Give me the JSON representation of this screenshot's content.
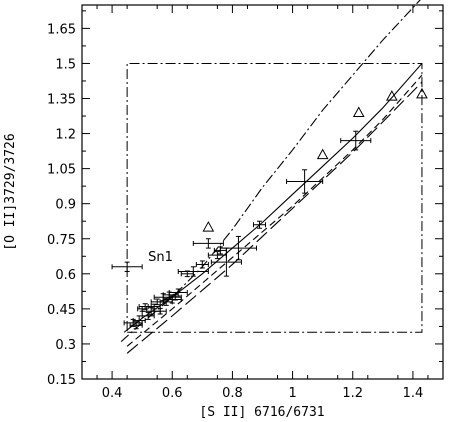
{
  "chart_data": {
    "type": "scatter",
    "title": "",
    "xlabel": "[S II] 6716/6731",
    "ylabel": "[O II]3729/3726",
    "xlim": [
      0.3,
      1.5
    ],
    "ylim": [
      0.15,
      1.75
    ],
    "xticks": [
      "0.4",
      "0.6",
      "0.8",
      "1",
      "1.2",
      "1.4"
    ],
    "yticks": [
      "0.15",
      "0.3",
      "0.45",
      "0.6",
      "0.75",
      "0.9",
      "1.05",
      "1.2",
      "1.35",
      "1.5",
      "1.65"
    ],
    "grid": false,
    "legend": "none",
    "box": {
      "x": [
        0.45,
        1.43
      ],
      "y": [
        0.35,
        1.5
      ]
    },
    "annotations": [
      {
        "text": "Sn1",
        "x": 0.52,
        "y": 0.655
      }
    ],
    "crosses": [
      {
        "x": 0.45,
        "y": 0.63,
        "xerr": 0.05,
        "yerr": 0.02
      },
      {
        "x": 0.47,
        "y": 0.39,
        "xerr": 0.03,
        "yerr": 0.015
      },
      {
        "x": 0.48,
        "y": 0.38,
        "xerr": 0.02,
        "yerr": 0.015
      },
      {
        "x": 0.49,
        "y": 0.4,
        "xerr": 0.02,
        "yerr": 0.02
      },
      {
        "x": 0.5,
        "y": 0.45,
        "xerr": 0.015,
        "yerr": 0.01
      },
      {
        "x": 0.51,
        "y": 0.46,
        "xerr": 0.02,
        "yerr": 0.012
      },
      {
        "x": 0.52,
        "y": 0.42,
        "xerr": 0.02,
        "yerr": 0.015
      },
      {
        "x": 0.53,
        "y": 0.44,
        "xerr": 0.03,
        "yerr": 0.015
      },
      {
        "x": 0.54,
        "y": 0.46,
        "xerr": 0.02,
        "yerr": 0.01
      },
      {
        "x": 0.55,
        "y": 0.48,
        "xerr": 0.02,
        "yerr": 0.012
      },
      {
        "x": 0.56,
        "y": 0.44,
        "xerr": 0.02,
        "yerr": 0.012
      },
      {
        "x": 0.57,
        "y": 0.5,
        "xerr": 0.03,
        "yerr": 0.015
      },
      {
        "x": 0.58,
        "y": 0.48,
        "xerr": 0.02,
        "yerr": 0.015
      },
      {
        "x": 0.59,
        "y": 0.51,
        "xerr": 0.02,
        "yerr": 0.012
      },
      {
        "x": 0.6,
        "y": 0.49,
        "xerr": 0.03,
        "yerr": 0.015
      },
      {
        "x": 0.61,
        "y": 0.5,
        "xerr": 0.02,
        "yerr": 0.012
      },
      {
        "x": 0.62,
        "y": 0.52,
        "xerr": 0.03,
        "yerr": 0.015
      },
      {
        "x": 0.65,
        "y": 0.6,
        "xerr": 0.02,
        "yerr": 0.012
      },
      {
        "x": 0.67,
        "y": 0.61,
        "xerr": 0.05,
        "yerr": 0.02
      },
      {
        "x": 0.7,
        "y": 0.64,
        "xerr": 0.02,
        "yerr": 0.015
      },
      {
        "x": 0.72,
        "y": 0.73,
        "xerr": 0.05,
        "yerr": 0.02
      },
      {
        "x": 0.75,
        "y": 0.68,
        "xerr": 0.03,
        "yerr": 0.015
      },
      {
        "x": 0.76,
        "y": 0.7,
        "xerr": 0.02,
        "yerr": 0.015
      },
      {
        "x": 0.78,
        "y": 0.65,
        "xerr": 0.05,
        "yerr": 0.06
      },
      {
        "x": 0.82,
        "y": 0.71,
        "xerr": 0.06,
        "yerr": 0.05
      },
      {
        "x": 0.89,
        "y": 0.81,
        "xerr": 0.02,
        "yerr": 0.015
      },
      {
        "x": 1.04,
        "y": 0.995,
        "xerr": 0.06,
        "yerr": 0.05
      },
      {
        "x": 1.21,
        "y": 1.17,
        "xerr": 0.05,
        "yerr": 0.04
      }
    ],
    "triangles": [
      {
        "x": 0.72,
        "y": 0.8
      },
      {
        "x": 1.1,
        "y": 1.11
      },
      {
        "x": 1.22,
        "y": 1.29
      },
      {
        "x": 1.33,
        "y": 1.36
      },
      {
        "x": 1.43,
        "y": 1.37
      }
    ],
    "series": [
      {
        "style": "solid",
        "x": [
          0.44,
          0.5,
          0.6,
          0.7,
          0.8,
          0.9,
          1.0,
          1.1,
          1.2,
          1.3,
          1.43
        ],
        "y": [
          0.35,
          0.41,
          0.5,
          0.6,
          0.71,
          0.82,
          0.94,
          1.06,
          1.18,
          1.31,
          1.5
        ]
      },
      {
        "style": "dashed",
        "x": [
          0.45,
          0.6,
          0.7,
          0.8,
          0.9,
          1.0,
          1.1,
          1.2,
          1.3,
          1.43
        ],
        "y": [
          0.29,
          0.45,
          0.56,
          0.67,
          0.78,
          0.89,
          1.01,
          1.13,
          1.26,
          1.45
        ]
      },
      {
        "style": "longdash",
        "x": [
          0.45,
          0.6,
          0.7,
          0.8,
          0.9,
          1.0,
          1.1,
          1.2,
          1.3,
          1.43
        ],
        "y": [
          0.26,
          0.42,
          0.53,
          0.64,
          0.76,
          0.88,
          1.0,
          1.12,
          1.25,
          1.42
        ]
      },
      {
        "style": "dashdot",
        "x": [
          0.43,
          0.5,
          0.6,
          0.7,
          0.8,
          0.9,
          1.0,
          1.1,
          1.2,
          1.3,
          1.43
        ],
        "y": [
          0.31,
          0.39,
          0.5,
          0.63,
          0.79,
          0.97,
          1.13,
          1.3,
          1.45,
          1.6,
          1.78
        ]
      }
    ]
  }
}
